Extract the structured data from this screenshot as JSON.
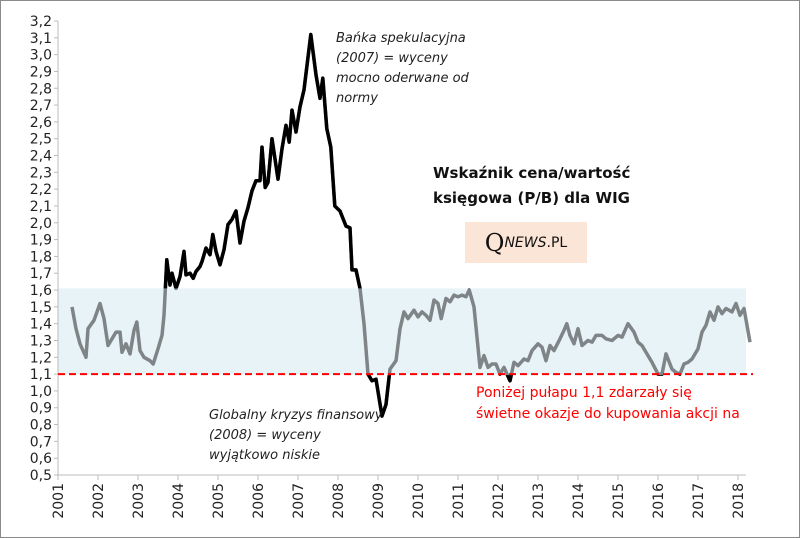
{
  "chart_data": {
    "type": "line",
    "title": "Wskaźnik cena/wartość księgowa (P/B) dla WIG",
    "xlabel": "",
    "ylabel": "",
    "ylim": [
      0.5,
      3.2
    ],
    "xlim": [
      2001,
      2018.3
    ],
    "yticks": [
      "0,5",
      "0,6",
      "0,7",
      "0,8",
      "0,9",
      "1,0",
      "1,1",
      "1,2",
      "1,3",
      "1,4",
      "1,5",
      "1,6",
      "1,7",
      "1,8",
      "1,9",
      "2,0",
      "2,1",
      "2,2",
      "2,3",
      "2,4",
      "2,5",
      "2,6",
      "2,7",
      "2,8",
      "2,9",
      "3,0",
      "3,1",
      "3,2"
    ],
    "xticks": [
      "2001",
      "2002",
      "2003",
      "2004",
      "2005",
      "2006",
      "2007",
      "2008",
      "2009",
      "2010",
      "2011",
      "2012",
      "2013",
      "2014",
      "2015",
      "2016",
      "2017",
      "2018"
    ],
    "normal_band": [
      1.1,
      1.61
    ],
    "threshold": 1.1,
    "colors": {
      "in_band": "#7f8487",
      "out_of_band": "#000000",
      "band": "#e8f3f8",
      "threshold": "#ff0000"
    },
    "series": [
      {
        "name": "P/B WIG",
        "points": [
          [
            2001.35,
            1.5
          ],
          [
            2001.45,
            1.37
          ],
          [
            2001.55,
            1.28
          ],
          [
            2001.7,
            1.2
          ],
          [
            2001.75,
            1.37
          ],
          [
            2001.9,
            1.42
          ],
          [
            2002.05,
            1.52
          ],
          [
            2002.15,
            1.43
          ],
          [
            2002.25,
            1.27
          ],
          [
            2002.35,
            1.31
          ],
          [
            2002.45,
            1.35
          ],
          [
            2002.55,
            1.35
          ],
          [
            2002.6,
            1.23
          ],
          [
            2002.7,
            1.28
          ],
          [
            2002.8,
            1.22
          ],
          [
            2002.9,
            1.36
          ],
          [
            2002.97,
            1.41
          ],
          [
            2003.05,
            1.24
          ],
          [
            2003.15,
            1.2
          ],
          [
            2003.3,
            1.18
          ],
          [
            2003.38,
            1.16
          ],
          [
            2003.5,
            1.25
          ],
          [
            2003.6,
            1.33
          ],
          [
            2003.65,
            1.45
          ],
          [
            2003.72,
            1.78
          ],
          [
            2003.8,
            1.63
          ],
          [
            2003.85,
            1.7
          ],
          [
            2003.95,
            1.61
          ],
          [
            2004.05,
            1.68
          ],
          [
            2004.15,
            1.83
          ],
          [
            2004.2,
            1.69
          ],
          [
            2004.3,
            1.7
          ],
          [
            2004.38,
            1.67
          ],
          [
            2004.45,
            1.71
          ],
          [
            2004.55,
            1.74
          ],
          [
            2004.6,
            1.77
          ],
          [
            2004.7,
            1.85
          ],
          [
            2004.8,
            1.81
          ],
          [
            2004.87,
            1.93
          ],
          [
            2004.95,
            1.83
          ],
          [
            2005.05,
            1.75
          ],
          [
            2005.15,
            1.84
          ],
          [
            2005.25,
            1.99
          ],
          [
            2005.35,
            2.02
          ],
          [
            2005.45,
            2.07
          ],
          [
            2005.55,
            1.88
          ],
          [
            2005.65,
            2.01
          ],
          [
            2005.75,
            2.09
          ],
          [
            2005.85,
            2.19
          ],
          [
            2005.95,
            2.25
          ],
          [
            2006.05,
            2.25
          ],
          [
            2006.1,
            2.45
          ],
          [
            2006.18,
            2.21
          ],
          [
            2006.25,
            2.24
          ],
          [
            2006.35,
            2.5
          ],
          [
            2006.5,
            2.26
          ],
          [
            2006.6,
            2.44
          ],
          [
            2006.7,
            2.58
          ],
          [
            2006.78,
            2.48
          ],
          [
            2006.85,
            2.67
          ],
          [
            2006.95,
            2.54
          ],
          [
            2007.05,
            2.69
          ],
          [
            2007.15,
            2.79
          ],
          [
            2007.32,
            3.12
          ],
          [
            2007.45,
            2.88
          ],
          [
            2007.55,
            2.74
          ],
          [
            2007.62,
            2.86
          ],
          [
            2007.72,
            2.56
          ],
          [
            2007.82,
            2.45
          ],
          [
            2007.92,
            2.1
          ],
          [
            2008.05,
            2.07
          ],
          [
            2008.2,
            1.98
          ],
          [
            2008.3,
            1.97
          ],
          [
            2008.35,
            1.72
          ],
          [
            2008.45,
            1.72
          ],
          [
            2008.55,
            1.61
          ],
          [
            2008.65,
            1.4
          ],
          [
            2008.75,
            1.1
          ],
          [
            2008.85,
            1.06
          ],
          [
            2008.95,
            1.07
          ],
          [
            2009.1,
            0.85
          ],
          [
            2009.2,
            0.92
          ],
          [
            2009.3,
            1.13
          ],
          [
            2009.45,
            1.18
          ],
          [
            2009.55,
            1.37
          ],
          [
            2009.65,
            1.47
          ],
          [
            2009.75,
            1.43
          ],
          [
            2009.9,
            1.48
          ],
          [
            2010.0,
            1.44
          ],
          [
            2010.1,
            1.47
          ],
          [
            2010.2,
            1.45
          ],
          [
            2010.3,
            1.42
          ],
          [
            2010.4,
            1.54
          ],
          [
            2010.5,
            1.52
          ],
          [
            2010.58,
            1.43
          ],
          [
            2010.7,
            1.55
          ],
          [
            2010.8,
            1.53
          ],
          [
            2010.9,
            1.57
          ],
          [
            2011.0,
            1.56
          ],
          [
            2011.1,
            1.57
          ],
          [
            2011.2,
            1.56
          ],
          [
            2011.28,
            1.6
          ],
          [
            2011.4,
            1.5
          ],
          [
            2011.55,
            1.14
          ],
          [
            2011.65,
            1.21
          ],
          [
            2011.75,
            1.14
          ],
          [
            2011.85,
            1.16
          ],
          [
            2011.95,
            1.16
          ],
          [
            2012.05,
            1.1
          ],
          [
            2012.15,
            1.14
          ],
          [
            2012.3,
            1.06
          ],
          [
            2012.4,
            1.17
          ],
          [
            2012.5,
            1.15
          ],
          [
            2012.65,
            1.19
          ],
          [
            2012.75,
            1.18
          ],
          [
            2012.85,
            1.24
          ],
          [
            2013.0,
            1.28
          ],
          [
            2013.1,
            1.26
          ],
          [
            2013.2,
            1.18
          ],
          [
            2013.3,
            1.27
          ],
          [
            2013.4,
            1.24
          ],
          [
            2013.55,
            1.31
          ],
          [
            2013.65,
            1.36
          ],
          [
            2013.72,
            1.4
          ],
          [
            2013.8,
            1.33
          ],
          [
            2013.9,
            1.28
          ],
          [
            2014.0,
            1.37
          ],
          [
            2014.1,
            1.27
          ],
          [
            2014.25,
            1.3
          ],
          [
            2014.35,
            1.29
          ],
          [
            2014.45,
            1.33
          ],
          [
            2014.6,
            1.33
          ],
          [
            2014.7,
            1.31
          ],
          [
            2014.85,
            1.3
          ],
          [
            2015.0,
            1.33
          ],
          [
            2015.1,
            1.32
          ],
          [
            2015.25,
            1.4
          ],
          [
            2015.4,
            1.35
          ],
          [
            2015.5,
            1.29
          ],
          [
            2015.6,
            1.27
          ],
          [
            2015.7,
            1.23
          ],
          [
            2015.85,
            1.17
          ],
          [
            2016.0,
            1.1
          ],
          [
            2016.1,
            1.1
          ],
          [
            2016.2,
            1.22
          ],
          [
            2016.35,
            1.13
          ],
          [
            2016.45,
            1.11
          ],
          [
            2016.55,
            1.1
          ],
          [
            2016.65,
            1.16
          ],
          [
            2016.75,
            1.17
          ],
          [
            2016.85,
            1.19
          ],
          [
            2017.0,
            1.25
          ],
          [
            2017.1,
            1.35
          ],
          [
            2017.2,
            1.39
          ],
          [
            2017.3,
            1.47
          ],
          [
            2017.4,
            1.42
          ],
          [
            2017.5,
            1.5
          ],
          [
            2017.6,
            1.46
          ],
          [
            2017.7,
            1.49
          ],
          [
            2017.85,
            1.47
          ],
          [
            2017.95,
            1.52
          ],
          [
            2018.05,
            1.45
          ],
          [
            2018.15,
            1.49
          ],
          [
            2018.3,
            1.29
          ]
        ]
      }
    ],
    "annotations": {
      "bubble": [
        "Bańka spekulacyjna",
        "(2007) = wyceny",
        "mocno oderwane od",
        "normy"
      ],
      "crisis": [
        "Globalny kryzys finansowy",
        "(2008) = wyceny",
        "wyjątkowo niskie"
      ],
      "threshold_note": [
        "Poniżej pułapu 1,1 zdarzały się",
        "świetne okazje do kupowania akcji na"
      ]
    },
    "title_lines": [
      "Wskaźnik cena/wartość",
      "księgowa (P/B) dla WIG"
    ],
    "logo": {
      "q": "Q",
      "news": "NEWS",
      "pl": ".PL"
    }
  }
}
